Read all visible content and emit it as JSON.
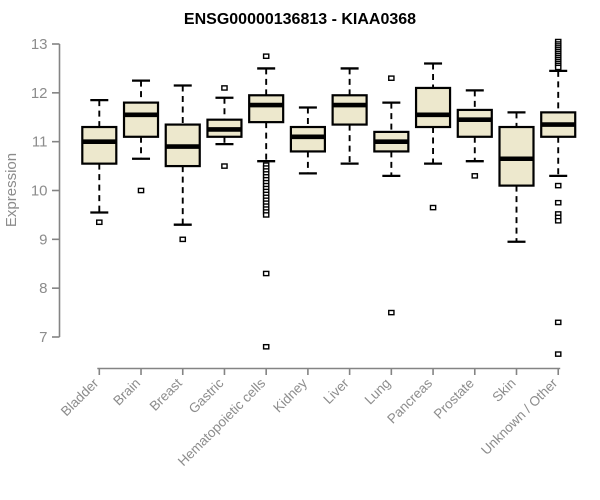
{
  "colors": {
    "box_fill": "#EDE8CD",
    "box_border": "#000000",
    "median": "#000000",
    "whisker": "#000000",
    "axis": "#848484",
    "tick_text": "#8c8c8c",
    "title_text": "#000000",
    "background": "#ffffff"
  },
  "chart_data": {
    "type": "boxplot",
    "title": "ENSG00000136813 - KIAA0368",
    "xlabel": "",
    "ylabel": "Expression",
    "yticks": [
      7,
      8,
      9,
      10,
      11,
      12,
      13
    ],
    "ylim": [
      6.5,
      13.1
    ],
    "grid": false,
    "legend": false,
    "categories": [
      "Bladder",
      "Brain",
      "Breast",
      "Gastric",
      "Hematopoietic cells",
      "Kidney",
      "Liver",
      "Lung",
      "Pancreas",
      "Prostate",
      "Skin",
      "Unknown / Other"
    ],
    "boxes": [
      {
        "category": "Bladder",
        "whisker_low": 9.55,
        "q1": 10.55,
        "median": 11.0,
        "q3": 11.3,
        "whisker_high": 11.85,
        "outliers": [
          9.35
        ]
      },
      {
        "category": "Brain",
        "whisker_low": 10.65,
        "q1": 11.1,
        "median": 11.55,
        "q3": 11.8,
        "whisker_high": 12.25,
        "outliers": [
          10.0
        ]
      },
      {
        "category": "Breast",
        "whisker_low": 9.3,
        "q1": 10.5,
        "median": 10.9,
        "q3": 11.35,
        "whisker_high": 12.15,
        "outliers": [
          9.0
        ]
      },
      {
        "category": "Gastric",
        "whisker_low": 10.95,
        "q1": 11.1,
        "median": 11.25,
        "q3": 11.45,
        "whisker_high": 11.9,
        "outliers": [
          12.1,
          10.5
        ]
      },
      {
        "category": "Hematopoietic cells",
        "whisker_low": 10.6,
        "q1": 11.4,
        "median": 11.75,
        "q3": 11.95,
        "whisker_high": 12.5,
        "outliers": [
          12.75,
          10.52,
          10.46,
          10.4,
          10.34,
          10.28,
          10.22,
          10.16,
          10.1,
          10.04,
          9.98,
          9.92,
          9.86,
          9.8,
          9.74,
          9.68,
          9.62,
          9.56,
          9.5,
          8.3,
          6.8
        ]
      },
      {
        "category": "Kidney",
        "whisker_low": 10.35,
        "q1": 10.8,
        "median": 11.1,
        "q3": 11.3,
        "whisker_high": 11.7,
        "outliers": []
      },
      {
        "category": "Liver",
        "whisker_low": 10.55,
        "q1": 11.35,
        "median": 11.75,
        "q3": 11.95,
        "whisker_high": 12.5,
        "outliers": []
      },
      {
        "category": "Lung",
        "whisker_low": 10.3,
        "q1": 10.8,
        "median": 11.0,
        "q3": 11.2,
        "whisker_high": 11.8,
        "outliers": [
          12.3,
          7.5
        ]
      },
      {
        "category": "Pancreas",
        "whisker_low": 10.55,
        "q1": 11.3,
        "median": 11.55,
        "q3": 12.1,
        "whisker_high": 12.6,
        "outliers": [
          9.65
        ]
      },
      {
        "category": "Prostate",
        "whisker_low": 10.6,
        "q1": 11.1,
        "median": 11.45,
        "q3": 11.65,
        "whisker_high": 12.05,
        "outliers": [
          10.3
        ]
      },
      {
        "category": "Skin",
        "whisker_low": 8.95,
        "q1": 10.1,
        "median": 10.65,
        "q3": 11.3,
        "whisker_high": 11.6,
        "outliers": []
      },
      {
        "category": "Unknown / Other",
        "whisker_low": 10.3,
        "q1": 11.1,
        "median": 11.35,
        "q3": 11.6,
        "whisker_high": 12.45,
        "outliers": [
          13.05,
          13.0,
          12.96,
          12.92,
          12.88,
          12.84,
          12.8,
          12.76,
          12.72,
          12.68,
          12.64,
          12.6,
          12.56,
          12.52,
          10.1,
          9.75,
          9.52,
          9.45,
          9.38,
          7.3,
          6.65
        ]
      }
    ]
  }
}
